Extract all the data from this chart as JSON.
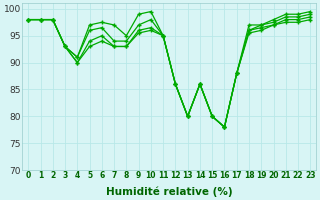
{
  "xlabel": "Humidité relative (%)",
  "bg_color": "#d8f5f5",
  "grid_color": "#b8e8e8",
  "line_color": "#00aa00",
  "xlim_min": -0.5,
  "xlim_max": 23.5,
  "ylim_min": 70,
  "ylim_max": 101,
  "yticks": [
    70,
    75,
    80,
    85,
    90,
    95,
    100
  ],
  "xticks": [
    0,
    1,
    2,
    3,
    4,
    5,
    6,
    7,
    8,
    9,
    10,
    11,
    12,
    13,
    14,
    15,
    16,
    17,
    18,
    19,
    20,
    21,
    22,
    23
  ],
  "lines": [
    [
      98,
      98,
      98,
      93,
      91,
      97,
      97.5,
      97,
      95,
      99,
      99.5,
      95,
      86,
      80,
      86,
      80,
      78,
      88,
      97,
      97,
      98,
      99,
      99,
      99.5
    ],
    [
      98,
      98,
      98,
      93,
      91,
      96,
      96.5,
      94,
      94,
      97,
      98,
      95,
      86,
      80,
      86,
      80,
      78,
      88,
      96,
      97,
      97.5,
      98.5,
      98.5,
      99
    ],
    [
      98,
      98,
      98,
      93,
      90,
      94,
      95,
      93,
      93,
      96,
      96.5,
      95,
      86,
      80,
      86,
      80,
      78,
      88,
      96,
      96.5,
      97,
      98,
      98,
      98.5
    ],
    [
      98,
      98,
      98,
      93,
      90,
      93,
      94,
      93,
      93,
      95.5,
      96,
      95,
      86,
      80,
      86,
      80,
      78,
      88,
      95.5,
      96,
      97,
      97.5,
      97.5,
      98
    ]
  ],
  "xlabel_color": "#006600",
  "tick_color_x": "#006600",
  "tick_color_y": "#333333",
  "xlabel_fontsize": 7.5,
  "xtick_fontsize": 5.5,
  "ytick_fontsize": 6.5
}
